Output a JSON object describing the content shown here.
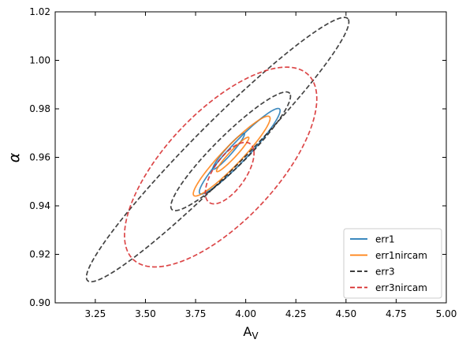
{
  "chart_data": {
    "type": "line",
    "subtype": "confidence-contours",
    "title": "",
    "xlabel": "A",
    "xlabel_sub": "V",
    "ylabel": "α",
    "xlim": [
      3.05,
      5.0
    ],
    "ylim": [
      0.9,
      1.02
    ],
    "xticks": [
      3.25,
      3.5,
      3.75,
      4.0,
      4.25,
      4.5,
      4.75,
      5.0
    ],
    "xtick_labels": [
      "3.25",
      "3.50",
      "3.75",
      "4.00",
      "4.25",
      "4.50",
      "4.75",
      "5.00"
    ],
    "yticks": [
      0.9,
      0.92,
      0.94,
      0.96,
      0.98,
      1.0,
      1.02
    ],
    "ytick_labels": [
      "0.90",
      "0.92",
      "0.94",
      "0.96",
      "0.98",
      "1.00",
      "1.02"
    ],
    "grid": false,
    "legend_position": "bottom-right",
    "series": [
      {
        "name": "err1",
        "color": "#1f77b4",
        "linestyle": "solid",
        "contours": [
          {
            "center": [
              3.97,
              0.9625
            ],
            "v1": [
              0.2,
              0.0173
            ],
            "v2": [
              -0.024,
              0.00347
            ]
          },
          {
            "center": [
              3.915,
              0.9625
            ],
            "v1": [
              0.078,
              0.0073
            ],
            "v2": [
              -0.011,
              0.00118
            ]
          }
        ]
      },
      {
        "name": "err1nircam",
        "color": "#ff7f0e",
        "linestyle": "solid",
        "contours": [
          {
            "center": [
              3.93,
              0.9605
            ],
            "v1": [
              0.19,
              0.0161
            ],
            "v2": [
              -0.024,
              0.00347
            ]
          },
          {
            "center": [
              3.935,
              0.9612
            ],
            "v1": [
              0.08,
              0.007
            ],
            "v2": [
              -0.0095,
              0.00125
            ]
          }
        ]
      },
      {
        "name": "err3",
        "color": "#222222",
        "linestyle": "dashed",
        "contours": [
          {
            "center": [
              3.86,
              0.9632
            ],
            "v1": [
              0.65,
              0.0539
            ],
            "v2": [
              -0.075,
              0.0081
            ]
          },
          {
            "center": [
              3.925,
              0.9625
            ],
            "v1": [
              0.295,
              0.0238
            ],
            "v2": [
              -0.044,
              0.0057
            ]
          }
        ]
      },
      {
        "name": "err3nircam",
        "color": "#d62728",
        "linestyle": "dashed",
        "contours": [
          {
            "center": [
              3.875,
              0.956
            ],
            "v1": [
              0.46,
              0.0355
            ],
            "v2": [
              -0.135,
              0.0209
            ]
          },
          {
            "center": [
              3.92,
              0.9535
            ],
            "v1": [
              0.12,
              0.0095
            ],
            "v2": [
              -0.018,
              0.0084
            ]
          }
        ]
      }
    ]
  }
}
